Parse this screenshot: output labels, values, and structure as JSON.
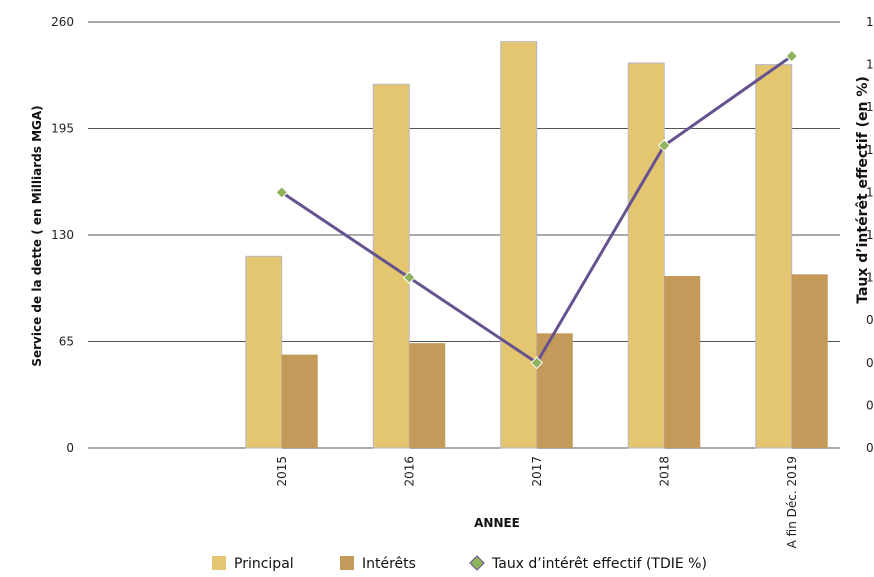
{
  "chart_data": {
    "type": "bar",
    "categories": [
      "2015",
      "2016",
      "2017",
      "2018",
      "A fin Déc. 2019"
    ],
    "series": [
      {
        "name": "Principal",
        "kind": "bar",
        "axis": "left",
        "color": "#e3c66f",
        "values": [
          117,
          222,
          248,
          235,
          234
        ]
      },
      {
        "name": "Intérêts",
        "kind": "bar",
        "axis": "left",
        "color": "#c49a5a",
        "values": [
          57,
          64,
          70,
          105,
          106
        ]
      },
      {
        "name": "Taux d’intérêt effectif (TDIE %)",
        "kind": "line",
        "axis": "right",
        "color": "#66528f",
        "marker_color": "#8fb35b",
        "values": [
          0.6,
          0.4,
          0.2,
          0.71,
          0.92
        ]
      }
    ],
    "xlabel": "ANNEE",
    "ylabel": "Service de la dette ( en Milliards MGA)",
    "y2label": "Taux d’intérêt effectif (en %)",
    "ylim": [
      0,
      260
    ],
    "yticks": [
      "0",
      "65",
      "130",
      "195",
      "260"
    ],
    "y2lim": [
      0,
      1
    ],
    "y2ticks": [
      "0",
      "0",
      "0",
      "0",
      "1",
      "1",
      "1",
      "1",
      "1",
      "1",
      "1"
    ],
    "grid": true,
    "legend_position": "bottom"
  }
}
